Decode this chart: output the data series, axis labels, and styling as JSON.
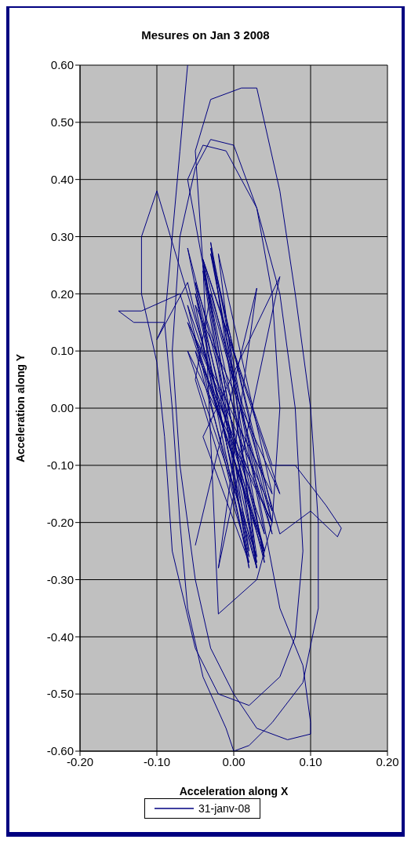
{
  "chart_data": {
    "type": "line",
    "title": "Mesures on Jan 3 2008",
    "xlabel": "Acceleration along X",
    "ylabel": "Acceleration along Y",
    "xlim": [
      -0.2,
      0.2
    ],
    "ylim": [
      -0.6,
      0.6
    ],
    "xticks": [
      {
        "value": -0.2,
        "label": "-0.20"
      },
      {
        "value": -0.1,
        "label": "-0.10"
      },
      {
        "value": 0,
        "label": "0.00"
      },
      {
        "value": 0.1,
        "label": "0.10"
      },
      {
        "value": 0.2,
        "label": "0.20"
      }
    ],
    "yticks": [
      {
        "value": -0.6,
        "label": "-0.60"
      },
      {
        "value": -0.5,
        "label": "-0.50"
      },
      {
        "value": -0.4,
        "label": "-0.40"
      },
      {
        "value": -0.3,
        "label": "-0.30"
      },
      {
        "value": -0.2,
        "label": "-0.20"
      },
      {
        "value": -0.1,
        "label": "-0.10"
      },
      {
        "value": 0,
        "label": "0.00"
      },
      {
        "value": 0.1,
        "label": "0.10"
      },
      {
        "value": 0.2,
        "label": "0.20"
      },
      {
        "value": 0.3,
        "label": "0.30"
      },
      {
        "value": 0.4,
        "label": "0.40"
      },
      {
        "value": 0.5,
        "label": "0.50"
      },
      {
        "value": 0.6,
        "label": "0.60"
      }
    ],
    "grid": true,
    "legend": "bottom",
    "marker": "none",
    "line_style": "solid",
    "series": [
      {
        "name": "31-janv-08",
        "color": "#000080",
        "x": [
          -0.06,
          -0.07,
          -0.08,
          -0.09,
          -0.08,
          -0.07,
          -0.06,
          -0.04,
          -0.01,
          0.0,
          0.02,
          0.05,
          0.09,
          0.11,
          0.11,
          0.1,
          0.08,
          0.06,
          0.04,
          0.03,
          0.01,
          -0.03,
          -0.05,
          -0.04,
          0.02,
          -0.05,
          0.04,
          -0.03,
          0.05,
          -0.05,
          0.03,
          -0.02,
          0.05,
          -0.06,
          0.04,
          -0.07,
          -0.12,
          -0.15,
          -0.13,
          -0.09,
          -0.1,
          -0.06,
          0.03,
          -0.04,
          0.05,
          0.08,
          0.12,
          0.14,
          0.135,
          0.1,
          0.06,
          -0.03,
          -0.05,
          0.02,
          -0.06,
          0.04,
          -0.1,
          -0.12,
          -0.12,
          -0.1,
          -0.09,
          -0.08,
          -0.05,
          -0.02,
          0.02,
          0.06,
          0.08,
          0.09,
          0.08,
          0.06,
          0.03,
          -0.01,
          -0.04,
          -0.06,
          0.03,
          -0.05,
          0.05,
          -0.04,
          0.06,
          -0.05,
          0.02,
          -0.04,
          0.05,
          -0.06,
          0.03,
          -0.03,
          0.06,
          0.09,
          0.1,
          0.1,
          0.07,
          0.03,
          0.0,
          -0.03,
          -0.05,
          -0.07,
          -0.08,
          -0.07,
          -0.05,
          -0.03,
          0.0,
          0.03,
          0.05,
          0.06,
          0.05,
          0.03,
          -0.02,
          -0.04,
          0.04,
          -0.05,
          0.05,
          -0.03,
          0.04,
          -0.06,
          0.02,
          -0.04,
          0.06,
          -0.02,
          0.03,
          -0.05
        ],
        "values": [
          0.6,
          0.45,
          0.3,
          0.15,
          0.0,
          -0.2,
          -0.35,
          -0.47,
          -0.56,
          -0.6,
          -0.59,
          -0.55,
          -0.48,
          -0.35,
          -0.2,
          0.0,
          0.2,
          0.38,
          0.5,
          0.56,
          0.56,
          0.54,
          0.45,
          0.25,
          -0.25,
          0.2,
          -0.27,
          0.28,
          -0.2,
          0.1,
          -0.28,
          0.27,
          -0.15,
          0.15,
          -0.25,
          0.2,
          0.17,
          0.17,
          0.15,
          0.15,
          0.12,
          0.22,
          -0.28,
          0.26,
          -0.1,
          -0.1,
          -0.17,
          -0.21,
          -0.225,
          -0.18,
          -0.22,
          0.2,
          0.05,
          -0.26,
          0.28,
          -0.25,
          0.38,
          0.3,
          0.2,
          0.08,
          -0.05,
          -0.25,
          -0.42,
          -0.5,
          -0.52,
          -0.47,
          -0.4,
          -0.25,
          0.0,
          0.2,
          0.35,
          0.45,
          0.46,
          0.4,
          -0.27,
          0.22,
          -0.22,
          0.26,
          -0.15,
          0.18,
          -0.28,
          0.24,
          -0.2,
          0.1,
          -0.26,
          0.29,
          -0.35,
          -0.45,
          -0.55,
          -0.57,
          -0.58,
          -0.56,
          -0.5,
          -0.42,
          -0.3,
          -0.1,
          0.1,
          0.3,
          0.42,
          0.47,
          0.46,
          0.35,
          0.2,
          0.0,
          -0.2,
          -0.3,
          -0.36,
          0.25,
          -0.26,
          0.12,
          -0.18,
          0.27,
          -0.22,
          0.18,
          -0.27,
          -0.05,
          0.23,
          -0.28,
          0.21,
          -0.24
        ]
      }
    ]
  }
}
